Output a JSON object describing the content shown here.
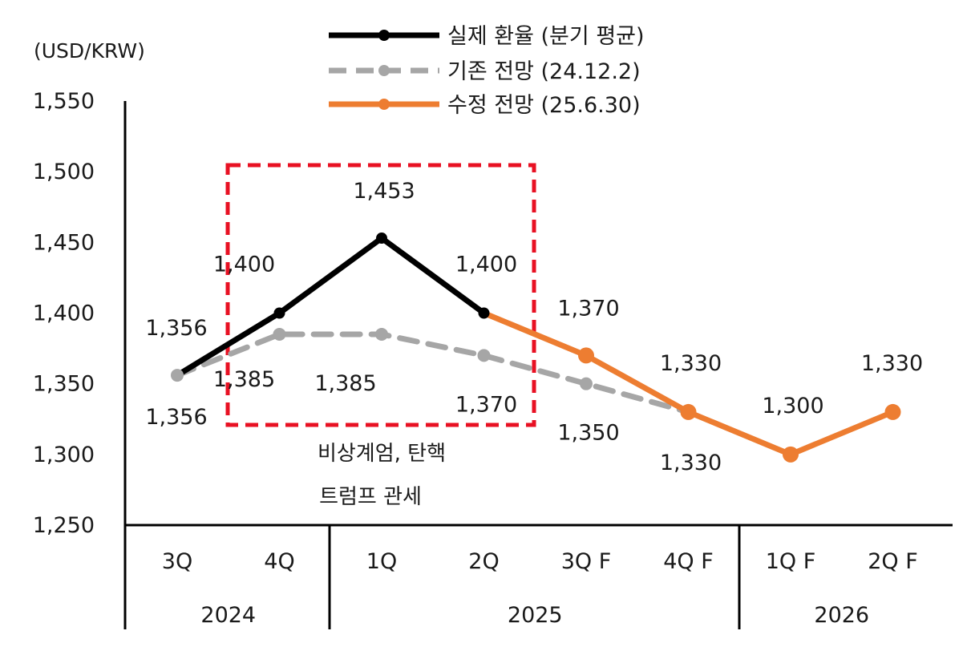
{
  "chart_data": {
    "type": "line",
    "ylabel": "(USD/KRW)",
    "ylim": [
      1250,
      1550
    ],
    "yticks": [
      "1,550",
      "1,500",
      "1,450",
      "1,400",
      "1,350",
      "1,300",
      "1,250"
    ],
    "ytick_values": [
      1550,
      1500,
      1450,
      1400,
      1350,
      1300,
      1250
    ],
    "categories": [
      "3Q",
      "4Q",
      "1Q",
      "2Q",
      "3Q F",
      "4Q F",
      "1Q F",
      "2Q F"
    ],
    "years": [
      {
        "label": "2024",
        "span": [
          0,
          1
        ]
      },
      {
        "label": "2025",
        "span": [
          2,
          5
        ]
      },
      {
        "label": "2026",
        "span": [
          6,
          7
        ]
      }
    ],
    "legend_position": "top",
    "grid": false,
    "series": [
      {
        "name": "실제 환율 (분기 평균)",
        "color": "#000000",
        "style": "solid",
        "values": [
          1356,
          1400,
          1453,
          1400,
          null,
          null,
          null,
          null
        ],
        "labels": [
          "1,356",
          "1,400",
          "1,453",
          "1,400",
          null,
          null,
          null,
          null
        ]
      },
      {
        "name": "기존 전망 (24.12.2)",
        "color": "#a6a6a6",
        "style": "dashed",
        "values": [
          1356,
          1385,
          1385,
          1370,
          1350,
          1330,
          null,
          null
        ],
        "labels": [
          "1,356",
          "1,385",
          "1,385",
          "1,370",
          "1,350",
          "1,330",
          null,
          null
        ]
      },
      {
        "name": "수정 전망 (25.6.30)",
        "color": "#ed7d31",
        "style": "solid",
        "values": [
          null,
          null,
          null,
          1400,
          1370,
          1330,
          1300,
          1330
        ],
        "labels": [
          null,
          null,
          null,
          null,
          "1,370",
          "1,330",
          "1,300",
          "1,330"
        ]
      }
    ],
    "annotation": {
      "highlight_categories": [
        1,
        3
      ],
      "highlight_color": "#e81123",
      "lines": [
        "비상계엄, 탄핵",
        "트럼프 관세"
      ]
    }
  }
}
